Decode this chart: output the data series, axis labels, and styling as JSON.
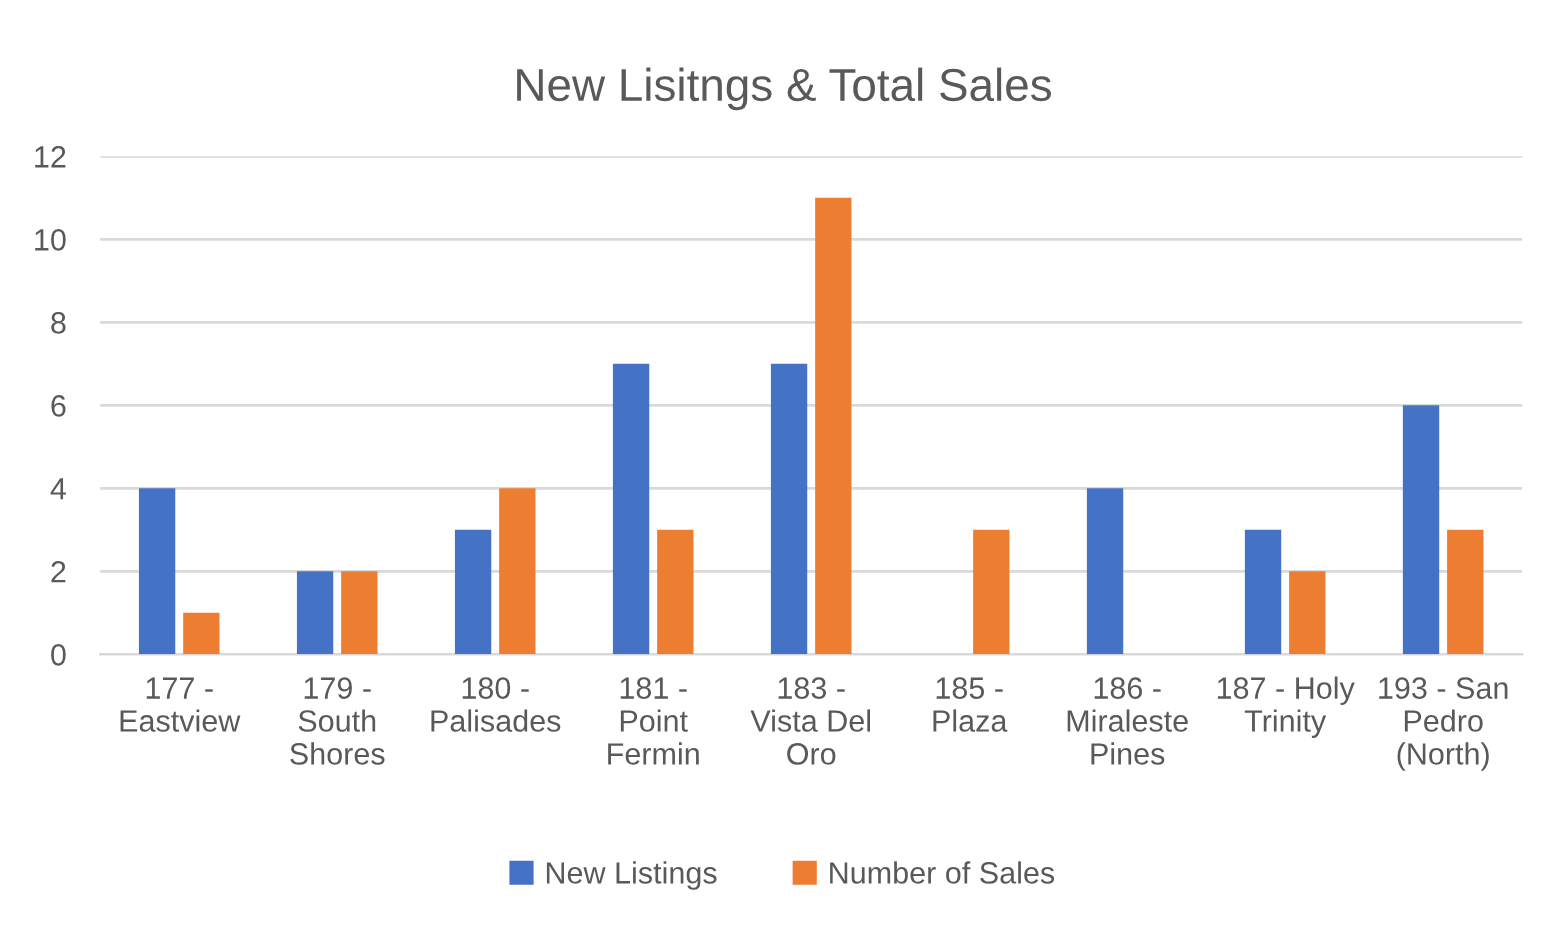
{
  "chart_data": {
    "type": "bar",
    "title": "New Lisitngs & Total Sales",
    "categories": [
      "177 -\nEastview",
      "179 -\nSouth\nShores",
      "180 -\nPalisades",
      "181 -\nPoint\nFermin",
      "183 -\nVista Del\nOro",
      "185 -\nPlaza",
      "186 -\nMiraleste\nPines",
      "187 - Holy\nTrinity",
      "193 - San\nPedro\n(North)"
    ],
    "series": [
      {
        "name": "New Listings",
        "color": "#4472c4",
        "values": [
          4,
          2,
          3,
          7,
          7,
          0,
          4,
          3,
          6
        ]
      },
      {
        "name": "Number of Sales",
        "color": "#ed7d31",
        "values": [
          1,
          2,
          4,
          3,
          11,
          3,
          0,
          2,
          3
        ]
      }
    ],
    "ylim": [
      0,
      12
    ],
    "yticks": [
      0,
      2,
      4,
      6,
      8,
      10,
      12
    ],
    "grid": "y",
    "legend": "bottom"
  }
}
